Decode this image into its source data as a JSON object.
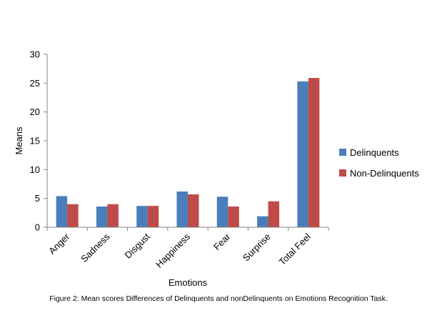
{
  "chart_data": {
    "type": "bar",
    "categories": [
      "Anger",
      "Sadness",
      "Disgust",
      "Happiness",
      "Fear",
      "Surprise",
      "Total Feel"
    ],
    "series": [
      {
        "name": "Delinquents",
        "values": [
          5.4,
          3.6,
          3.7,
          6.2,
          5.3,
          1.9,
          25.3
        ],
        "color": "#4A7EBB"
      },
      {
        "name": "Non-Delinquents",
        "values": [
          4.0,
          4.0,
          3.7,
          5.7,
          3.6,
          4.5,
          25.9
        ],
        "color": "#BE4B48"
      }
    ],
    "xlabel": "Emotions",
    "ylabel": "Means",
    "ylim": [
      0,
      30
    ],
    "yticks": [
      "0",
      "5",
      "10",
      "15",
      "20",
      "25",
      "30"
    ],
    "grid": false,
    "legend": "right"
  },
  "caption": "Figure 2: Mean scores Differences of Delinquents and nonDelinquents on Emotions Recognition Task."
}
